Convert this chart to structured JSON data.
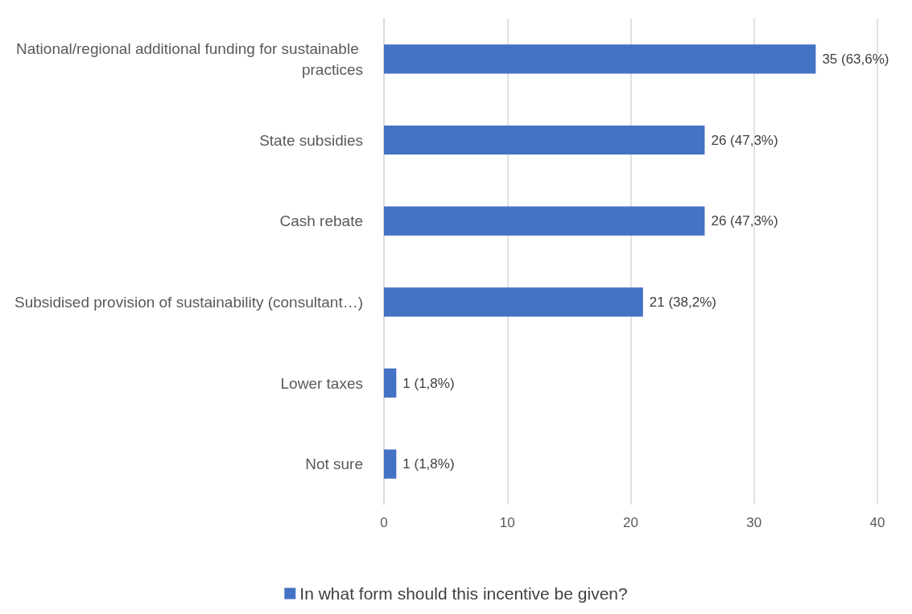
{
  "chart_data": {
    "type": "bar",
    "orientation": "horizontal",
    "categories": [
      "National/regional additional funding for sustainable practices",
      "State subsidies",
      "Cash rebate",
      "Subsidised provision of sustainability (consultant…)",
      "Lower taxes",
      "Not sure"
    ],
    "series": [
      {
        "name": "In what form should this incentive be given?",
        "color": "#4472c4",
        "values": [
          35,
          26,
          26,
          21,
          1,
          1
        ],
        "value_labels": [
          "35 (63,6%)",
          "26 (47,3%)",
          "26 (47,3%)",
          "21 (38,2%)",
          "1 (1,8%)",
          "1 (1,8%)"
        ]
      }
    ],
    "xlim": [
      0,
      40
    ],
    "xticks": [
      0,
      10,
      20,
      30,
      40
    ],
    "grid": "x",
    "legend": "bottom"
  }
}
